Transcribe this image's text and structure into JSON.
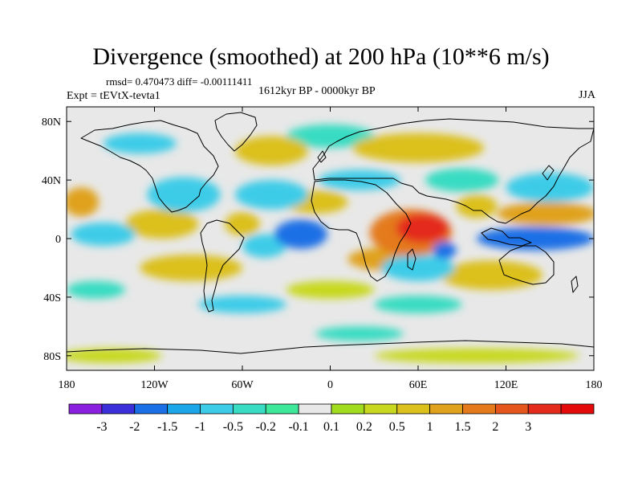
{
  "chart_data": {
    "type": "heatmap",
    "title": "Divergence (smoothed) at 200 hPa (10**6 m/s)",
    "stats_text": "rmsd= 0.470473 diff= -0.00111411",
    "experiment": "Expt = tEVtX-tevta1",
    "period": "1612kyr BP - 0000kyr BP",
    "season": "JJA",
    "x_ticks": [
      {
        "value": -180,
        "label": "180"
      },
      {
        "value": -120,
        "label": "120W"
      },
      {
        "value": -60,
        "label": "60W"
      },
      {
        "value": 0,
        "label": "0"
      },
      {
        "value": 60,
        "label": "60E"
      },
      {
        "value": 120,
        "label": "120E"
      },
      {
        "value": 180,
        "label": "180"
      }
    ],
    "y_ticks": [
      {
        "value": 80,
        "label": "80N"
      },
      {
        "value": 40,
        "label": "40N"
      },
      {
        "value": 0,
        "label": "0"
      },
      {
        "value": -40,
        "label": "40S"
      },
      {
        "value": -80,
        "label": "80S"
      }
    ],
    "xlim": [
      -180,
      180
    ],
    "ylim": [
      -90,
      90
    ],
    "colorbar": {
      "colors": [
        "#8a1fe0",
        "#3a2fd8",
        "#1a6fe6",
        "#1aa6e8",
        "#3dcce8",
        "#37dcc2",
        "#3de89a",
        "#e8e8e8",
        "#a2dc1e",
        "#c8d81e",
        "#dcc01c",
        "#e0a21c",
        "#e47a1c",
        "#e4561c",
        "#e42a1a",
        "#e40a0a"
      ],
      "labels": [
        "-3",
        "-2",
        "-1.5",
        "-1",
        "-0.5",
        "-0.2",
        "-0.1",
        "0.1",
        "0.2",
        "0.5",
        "1",
        "1.5",
        "2",
        "3"
      ]
    },
    "features": [
      {
        "lon": 63,
        "lat": 7,
        "rx": 18,
        "ry": 10,
        "value": 3.2
      },
      {
        "lon": 55,
        "lat": 4,
        "rx": 28,
        "ry": 16,
        "value": 1.6
      },
      {
        "lon": 40,
        "lat": -14,
        "rx": 28,
        "ry": 8,
        "value": 1.0
      },
      {
        "lon": 148,
        "lat": 17,
        "rx": 34,
        "ry": 8,
        "value": 1.2
      },
      {
        "lon": 100,
        "lat": 22,
        "rx": 14,
        "ry": 8,
        "value": 0.8
      },
      {
        "lon": -170,
        "lat": 25,
        "rx": 12,
        "ry": 10,
        "value": 1.0
      },
      {
        "lon": -115,
        "lat": 10,
        "rx": 25,
        "ry": 10,
        "value": 0.7
      },
      {
        "lon": -60,
        "lat": 10,
        "rx": 12,
        "ry": 8,
        "value": 0.6
      },
      {
        "lon": -10,
        "lat": 25,
        "rx": 22,
        "ry": 8,
        "value": 0.6
      },
      {
        "lon": -95,
        "lat": -20,
        "rx": 35,
        "ry": 9,
        "value": 0.7
      },
      {
        "lon": 110,
        "lat": -25,
        "rx": 35,
        "ry": 10,
        "value": 0.7
      },
      {
        "lon": -40,
        "lat": 60,
        "rx": 25,
        "ry": 10,
        "value": 0.6
      },
      {
        "lon": 60,
        "lat": 62,
        "rx": 45,
        "ry": 10,
        "value": 0.5
      },
      {
        "lon": 0,
        "lat": -35,
        "rx": 30,
        "ry": 6,
        "value": 0.3
      },
      {
        "lon": 100,
        "lat": -80,
        "rx": 70,
        "ry": 5,
        "value": 0.3
      },
      {
        "lon": -150,
        "lat": -80,
        "rx": 35,
        "ry": 5,
        "value": 0.3
      },
      {
        "lon": 78,
        "lat": -8,
        "rx": 8,
        "ry": 6,
        "value": -1.6
      },
      {
        "lon": 60,
        "lat": -20,
        "rx": 25,
        "ry": 9,
        "value": -1.0
      },
      {
        "lon": 140,
        "lat": 0,
        "rx": 40,
        "ry": 8,
        "value": -2.0
      },
      {
        "lon": 150,
        "lat": 35,
        "rx": 30,
        "ry": 10,
        "value": -1.0
      },
      {
        "lon": -20,
        "lat": 3,
        "rx": 18,
        "ry": 10,
        "value": -1.8
      },
      {
        "lon": -45,
        "lat": -5,
        "rx": 15,
        "ry": 8,
        "value": -1.0
      },
      {
        "lon": -155,
        "lat": 3,
        "rx": 22,
        "ry": 8,
        "value": -0.8
      },
      {
        "lon": -100,
        "lat": 30,
        "rx": 25,
        "ry": 12,
        "value": -0.9
      },
      {
        "lon": -40,
        "lat": 30,
        "rx": 25,
        "ry": 10,
        "value": -0.7
      },
      {
        "lon": -130,
        "lat": 65,
        "rx": 25,
        "ry": 7,
        "value": -0.6
      },
      {
        "lon": 20,
        "lat": 40,
        "rx": 28,
        "ry": 7,
        "value": -0.6
      },
      {
        "lon": 90,
        "lat": 40,
        "rx": 25,
        "ry": 8,
        "value": -0.5
      },
      {
        "lon": -60,
        "lat": -45,
        "rx": 30,
        "ry": 6,
        "value": -0.6
      },
      {
        "lon": 60,
        "lat": -45,
        "rx": 30,
        "ry": 6,
        "value": -0.5
      },
      {
        "lon": -160,
        "lat": -35,
        "rx": 20,
        "ry": 6,
        "value": -0.5
      },
      {
        "lon": 20,
        "lat": -65,
        "rx": 30,
        "ry": 5,
        "value": -0.4
      },
      {
        "lon": 0,
        "lat": 70,
        "rx": 30,
        "ry": 8,
        "value": -0.4
      }
    ]
  }
}
